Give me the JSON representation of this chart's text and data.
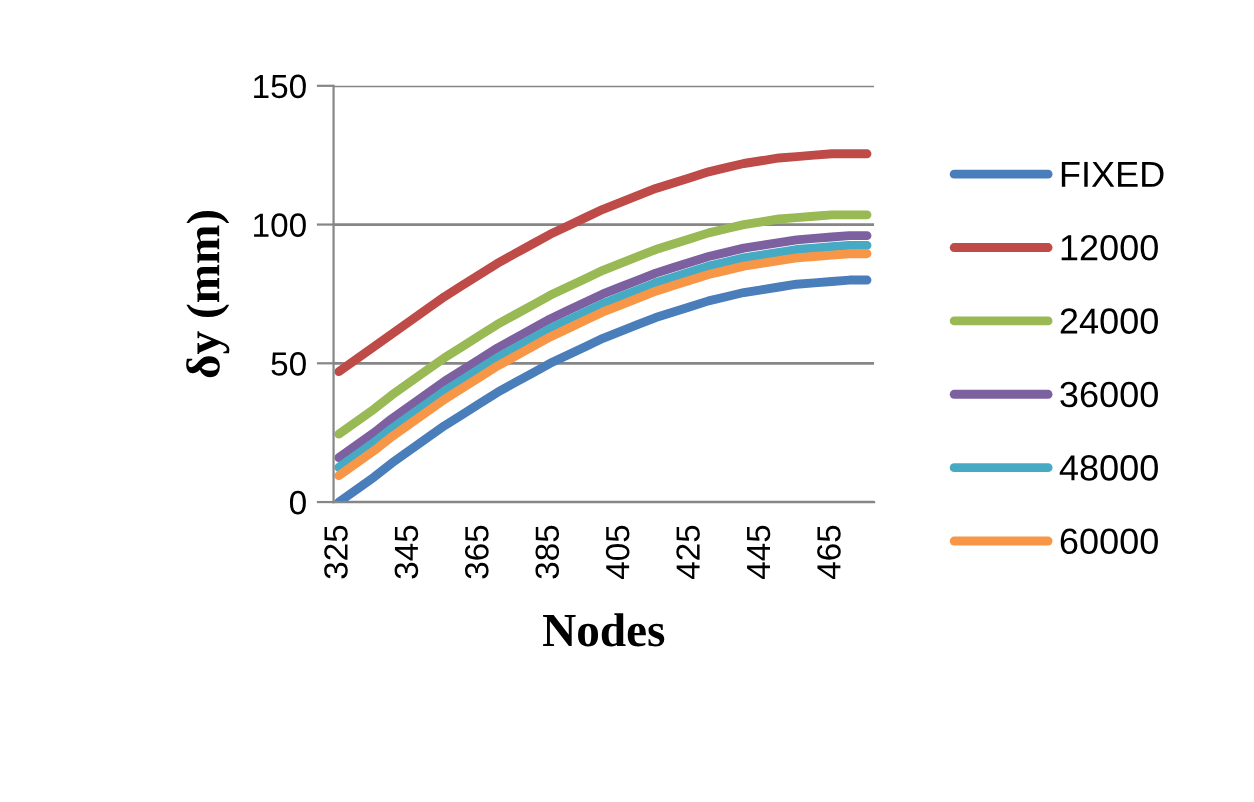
{
  "chart_data": {
    "type": "line",
    "xlabel": "Nodes",
    "ylabel": "δy (mm)",
    "categories": [
      "325",
      null,
      null,
      null,
      "345",
      null,
      null,
      null,
      "365",
      null,
      null,
      null,
      "385",
      null,
      null,
      null,
      "405",
      null,
      null,
      null,
      "425",
      null,
      null,
      null,
      "445",
      null,
      null,
      null,
      "465",
      null,
      null
    ],
    "ylim": [
      0,
      150
    ],
    "yticks": [
      0,
      50,
      100,
      150
    ],
    "grid": "y",
    "legend": "right",
    "marker": "none",
    "line_style": "solid",
    "series": [
      {
        "name": "FIXED",
        "color": "#4a7ebb",
        "values": [
          0,
          4.5,
          9,
          14,
          18.5,
          23,
          27.5,
          31.5,
          35.5,
          39.5,
          43,
          46.5,
          50,
          53,
          56,
          59,
          61.5,
          64,
          66.5,
          68.5,
          70.5,
          72.5,
          74,
          75.5,
          76.5,
          77.5,
          78.5,
          79,
          79.5,
          80,
          80
        ]
      },
      {
        "name": "12000",
        "color": "#be4b48",
        "values": [
          47,
          51.5,
          56,
          60.5,
          65,
          69.5,
          74,
          78,
          82,
          86,
          89.5,
          93,
          96.5,
          99.5,
          102.5,
          105.5,
          108,
          110.5,
          113,
          115,
          117,
          119,
          120.5,
          122,
          123,
          124,
          124.5,
          125,
          125.5,
          125.5,
          125.5
        ]
      },
      {
        "name": "24000",
        "color": "#98b954",
        "values": [
          24.5,
          29,
          33.5,
          38.5,
          43,
          47.5,
          52,
          56,
          60,
          64,
          67.5,
          71,
          74.5,
          77.5,
          80.5,
          83.5,
          86,
          88.5,
          91,
          93,
          95,
          97,
          98.5,
          100,
          101,
          102,
          102.5,
          103,
          103.5,
          103.5,
          103.5
        ]
      },
      {
        "name": "36000",
        "color": "#7d60a0",
        "values": [
          16,
          20.5,
          25,
          30,
          34.5,
          39,
          43.5,
          47.5,
          51.5,
          55.5,
          59,
          62.5,
          66,
          69,
          72,
          75,
          77.5,
          80,
          82.5,
          84.5,
          86.5,
          88.5,
          90,
          91.5,
          92.5,
          93.5,
          94.5,
          95,
          95.5,
          96,
          96
        ]
      },
      {
        "name": "48000",
        "color": "#46aac5",
        "values": [
          12.5,
          17,
          21.5,
          26.5,
          31,
          35.5,
          40,
          44,
          48,
          52,
          55.5,
          59,
          62.5,
          65.5,
          68.5,
          71.5,
          74,
          76.5,
          79,
          81,
          83,
          85,
          86.5,
          88,
          89,
          90,
          91,
          91.5,
          92,
          92.5,
          92.5
        ]
      },
      {
        "name": "60000",
        "color": "#f79646",
        "values": [
          9.5,
          14,
          18.5,
          23.5,
          28,
          32.5,
          37,
          41,
          45,
          49,
          52.5,
          56,
          59.5,
          62.5,
          65.5,
          68.5,
          71,
          73.5,
          76,
          78,
          80,
          82,
          83.5,
          85,
          86,
          87,
          88,
          88.5,
          89,
          89.5,
          89.5
        ]
      }
    ]
  }
}
